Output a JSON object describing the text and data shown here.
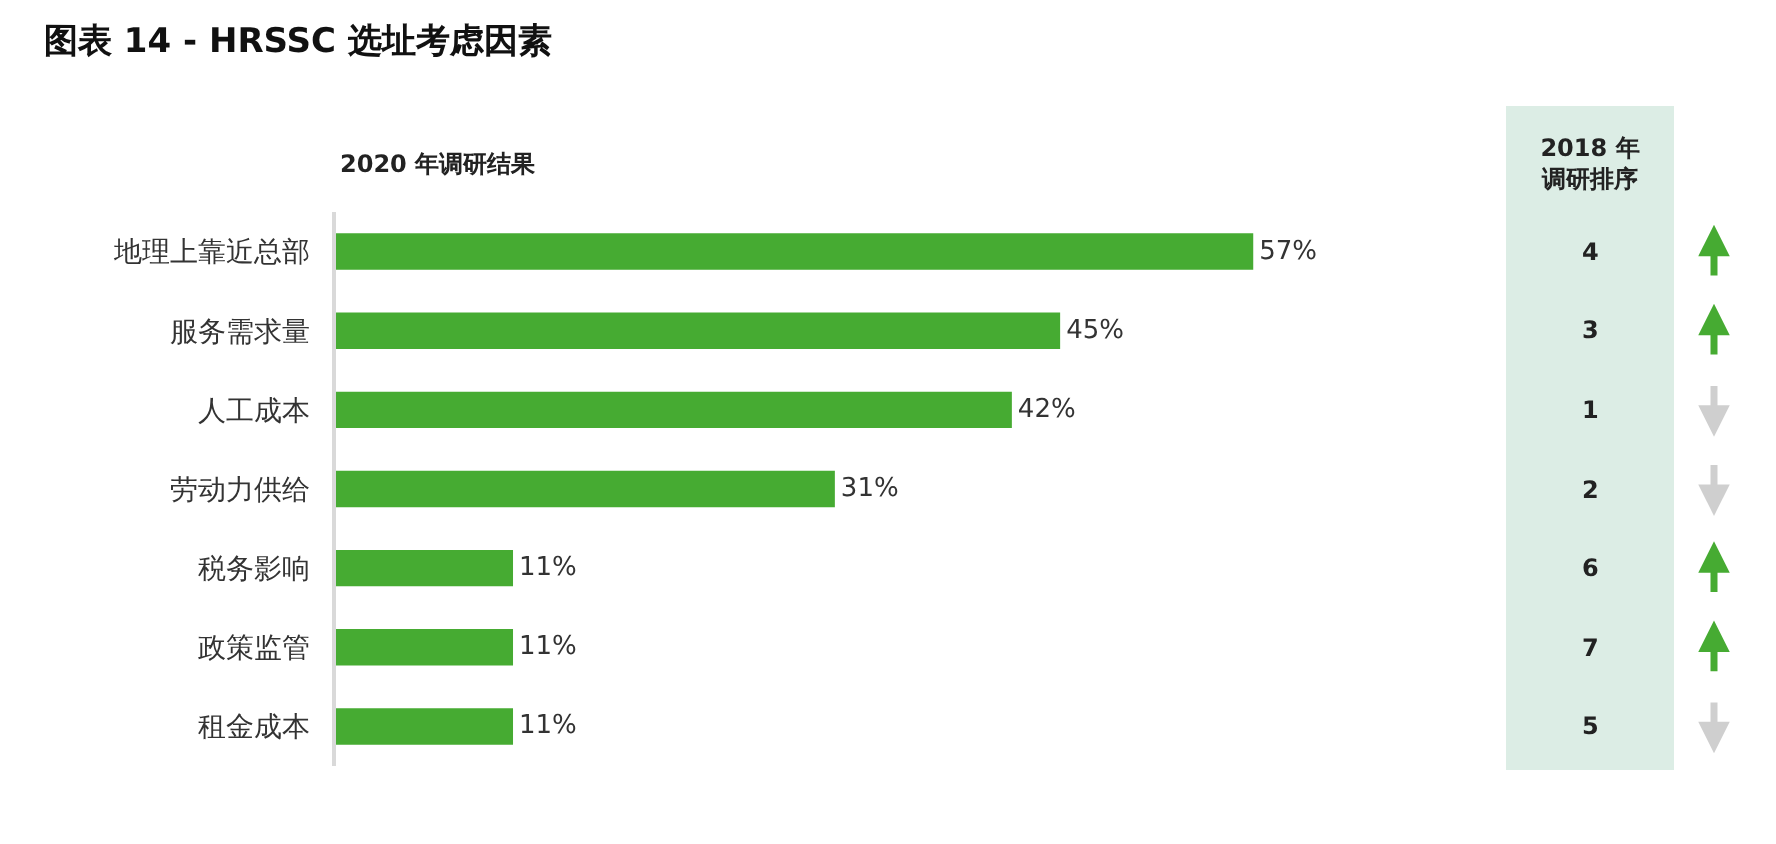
{
  "chart_data": {
    "type": "bar",
    "orientation": "horizontal",
    "title": "图表 14 - HRSSC 选址考虑因素",
    "subtitle": "2020 年调研结果",
    "categories": [
      "地理上靠近总部",
      "服务需求量",
      "人工成本",
      "劳动力供给",
      "税务影响",
      "政策监管",
      "租金成本"
    ],
    "values": [
      57,
      45,
      42,
      31,
      11,
      11,
      11
    ],
    "value_labels": [
      "57%",
      "45%",
      "42%",
      "31%",
      "11%",
      "11%",
      "11%"
    ],
    "color": "#46ab32",
    "tick_labels": "y",
    "annotations": [
      "2018 年调研排序",
      "4",
      "3",
      "1",
      "2",
      "6",
      "7",
      "5"
    ]
  }
}
